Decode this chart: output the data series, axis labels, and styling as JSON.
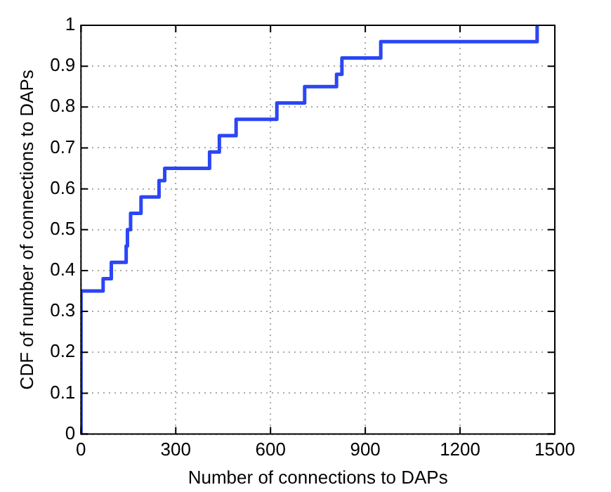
{
  "chart_data": {
    "type": "step",
    "xlabel": "Number of connections to DAPs",
    "ylabel": "CDF of number of connections to DAPs",
    "series": [
      {
        "color": "#2b46f5",
        "x": [
          0,
          0,
          70,
          96,
          143,
          147,
          157,
          190,
          247,
          265,
          407,
          438,
          491,
          620,
          708,
          809,
          826,
          949,
          1444
        ],
        "values": [
          0,
          0.35,
          0.38,
          0.42,
          0.46,
          0.5,
          0.54,
          0.58,
          0.62,
          0.65,
          0.69,
          0.73,
          0.77,
          0.81,
          0.85,
          0.88,
          0.92,
          0.96,
          1
        ]
      }
    ],
    "xlim": [
      0,
      1500
    ],
    "xticks": [
      0,
      300,
      600,
      900,
      1200,
      1500
    ],
    "ylim": [
      0,
      1
    ],
    "yticks": [
      0,
      0.1,
      0.2,
      0.3,
      0.4,
      0.5,
      0.6,
      0.7,
      0.8,
      0.9,
      1
    ],
    "grid": true,
    "legend": false,
    "line_style": "solid",
    "marker": "none"
  }
}
